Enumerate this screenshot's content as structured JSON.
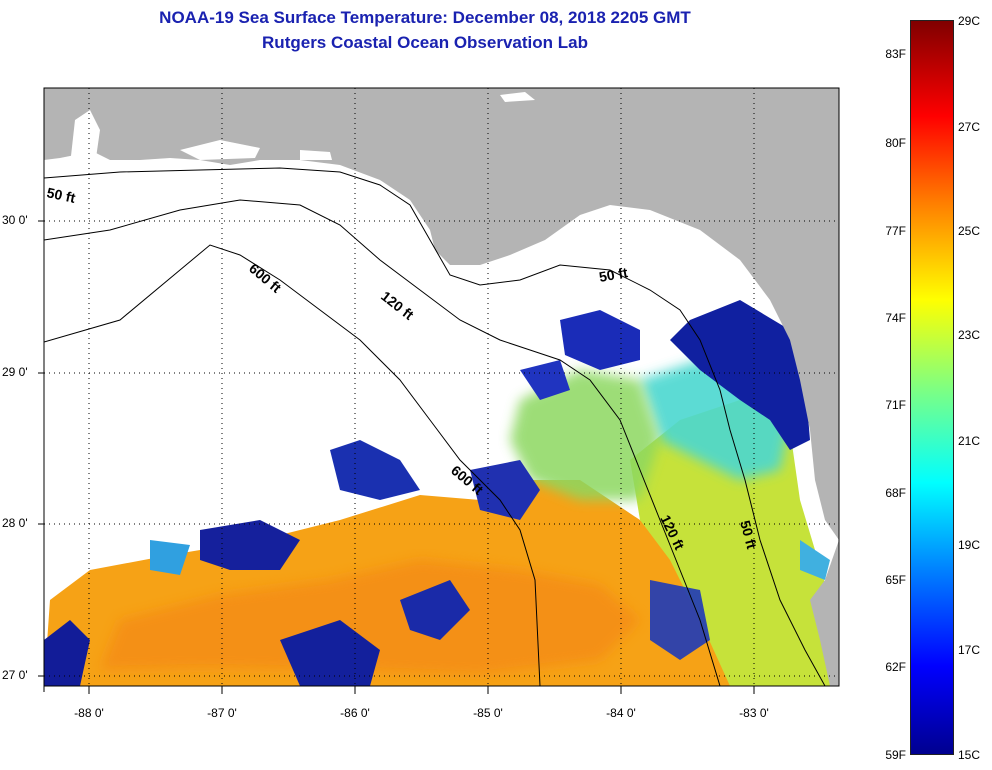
{
  "header": {
    "title_line1": "NOAA-19 Sea Surface Temperature:  December 08, 2018 2205 GMT",
    "title_line2": "Rutgers Coastal Ocean Observation Lab"
  },
  "axes": {
    "latitude_labels": [
      "30 0'",
      "29 0'",
      "28 0'",
      "27 0'"
    ],
    "longitude_labels": [
      "-88 0'",
      "-87 0'",
      "-86 0'",
      "-85 0'",
      "-84 0'",
      "-83 0'"
    ]
  },
  "isobaths": {
    "labels": [
      "50 ft",
      "600 ft",
      "120 ft",
      "50 ft",
      "600 ft",
      "120 ft",
      "50 ft"
    ]
  },
  "colorbar": {
    "fahrenheit_labels": [
      "83F",
      "80F",
      "77F",
      "74F",
      "71F",
      "68F",
      "65F",
      "62F",
      "59F"
    ],
    "celsius_labels": [
      "29C",
      "27C",
      "25C",
      "23C",
      "21C",
      "19C",
      "17C",
      "15C"
    ],
    "range_c": [
      15,
      29
    ],
    "range_f": [
      59,
      84
    ]
  },
  "colors": {
    "land": "#b4b4b4",
    "cloud": "#ffffff",
    "title": "#1a22b0",
    "warm_water": "#f7a013",
    "cold_water": "#10109a",
    "shelf_water": "#b8e43a"
  }
}
